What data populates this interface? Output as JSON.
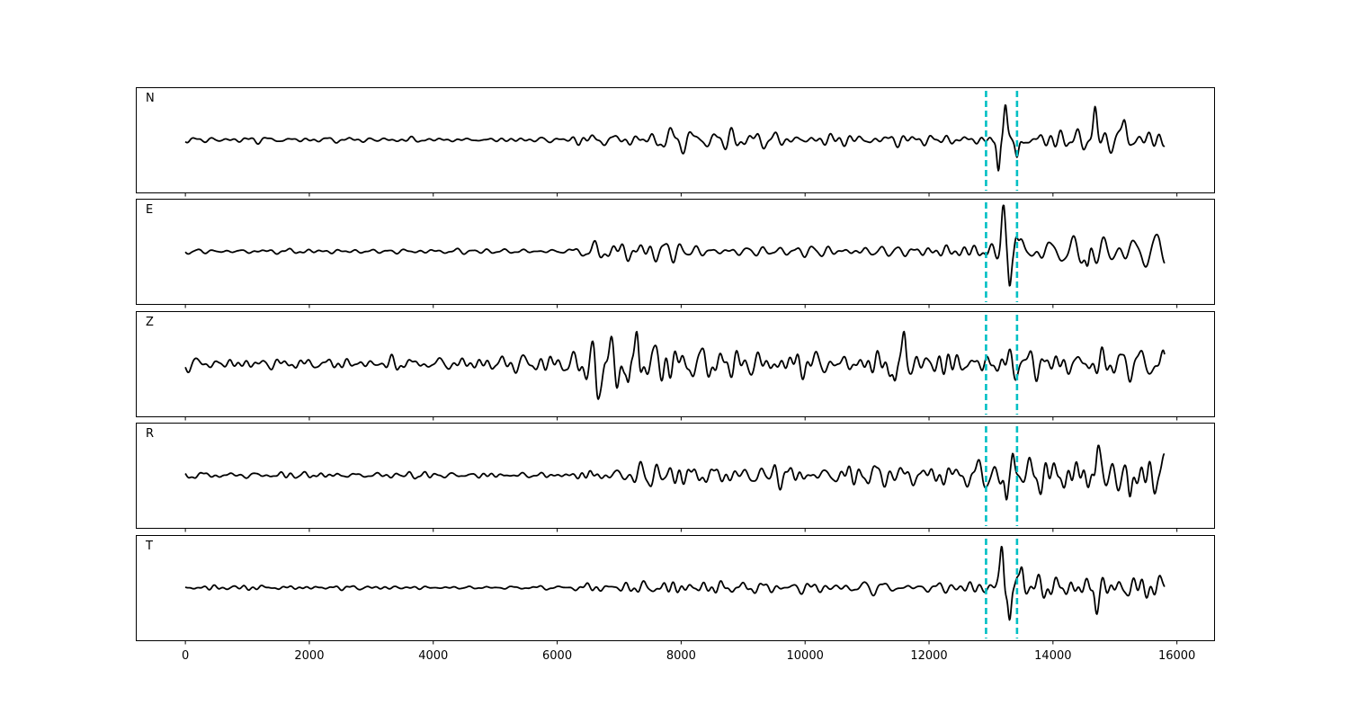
{
  "chart_data": {
    "type": "line",
    "title": "",
    "xlabel": "",
    "ylabel": "",
    "xlim": [
      -800,
      16600
    ],
    "ylim": [
      -1,
      1
    ],
    "x_ticks": [
      0,
      2000,
      4000,
      6000,
      8000,
      10000,
      12000,
      14000,
      16000
    ],
    "x_tick_labels": [
      "0",
      "2000",
      "4000",
      "6000",
      "8000",
      "10000",
      "12000",
      "14000",
      "16000"
    ],
    "x_range": [
      0,
      15800
    ],
    "grid": false,
    "legend": "none",
    "trace_color": "#000000",
    "marker_color": "#00bfc4",
    "markers": [
      12920,
      13420
    ],
    "series": [
      {
        "name": "N",
        "noise_level": 0.06,
        "segments": [
          {
            "start": 6300,
            "level": 0.16
          },
          {
            "start": 7500,
            "level": 0.22
          },
          {
            "start": 9500,
            "level": 0.17
          },
          {
            "start": 12800,
            "level": 0.18
          },
          {
            "start": 13400,
            "level": 0.27
          }
        ],
        "spikes": [
          {
            "x": 13230,
            "amp": 0.85,
            "sigma": 40
          },
          {
            "x": 13120,
            "amp": -0.75,
            "sigma": 35
          },
          {
            "x": 13420,
            "amp": -0.45,
            "sigma": 40
          },
          {
            "x": 14680,
            "amp": 0.55,
            "sigma": 40
          },
          {
            "x": 15160,
            "amp": 0.35,
            "sigma": 45
          }
        ]
      },
      {
        "name": "E",
        "noise_level": 0.06,
        "segments": [
          {
            "start": 6200,
            "level": 0.18
          },
          {
            "start": 6500,
            "level": 0.24
          },
          {
            "start": 8000,
            "level": 0.16
          },
          {
            "start": 11500,
            "level": 0.2
          },
          {
            "start": 12800,
            "level": 0.25
          },
          {
            "start": 13500,
            "level": 0.35
          }
        ],
        "spikes": [
          {
            "x": 13200,
            "amp": 0.85,
            "sigma": 40
          },
          {
            "x": 13300,
            "amp": -0.7,
            "sigma": 35
          },
          {
            "x": 13400,
            "amp": 0.45,
            "sigma": 40
          },
          {
            "x": 14560,
            "amp": -0.4,
            "sigma": 40
          }
        ]
      },
      {
        "name": "Z",
        "noise_level": 0.13,
        "segments": [
          {
            "start": 4800,
            "level": 0.2
          },
          {
            "start": 6400,
            "level": 0.52
          },
          {
            "start": 7600,
            "level": 0.42
          },
          {
            "start": 8600,
            "level": 0.28
          },
          {
            "start": 11300,
            "level": 0.32
          },
          {
            "start": 12600,
            "level": 0.28
          },
          {
            "start": 13500,
            "level": 0.3
          }
        ],
        "spikes": [
          {
            "x": 6640,
            "amp": -0.6,
            "sigma": 40
          },
          {
            "x": 7150,
            "amp": -0.65,
            "sigma": 40
          },
          {
            "x": 7290,
            "amp": 0.65,
            "sigma": 40
          },
          {
            "x": 11600,
            "amp": 0.55,
            "sigma": 40
          },
          {
            "x": 11450,
            "amp": -0.45,
            "sigma": 40
          }
        ]
      },
      {
        "name": "R",
        "noise_level": 0.07,
        "segments": [
          {
            "start": 6400,
            "level": 0.24
          },
          {
            "start": 8200,
            "level": 0.22
          },
          {
            "start": 10200,
            "level": 0.24
          },
          {
            "start": 12600,
            "level": 0.3
          },
          {
            "start": 13500,
            "level": 0.42
          }
        ],
        "spikes": [
          {
            "x": 13250,
            "amp": -0.75,
            "sigma": 40
          },
          {
            "x": 13350,
            "amp": 0.6,
            "sigma": 40
          },
          {
            "x": 14720,
            "amp": 0.5,
            "sigma": 40
          },
          {
            "x": 15240,
            "amp": -0.45,
            "sigma": 40
          }
        ]
      },
      {
        "name": "T",
        "noise_level": 0.05,
        "segments": [
          {
            "start": 4700,
            "level": 0.05
          },
          {
            "start": 6300,
            "level": 0.11
          },
          {
            "start": 7500,
            "level": 0.16
          },
          {
            "start": 9500,
            "level": 0.12
          },
          {
            "start": 11800,
            "level": 0.12
          },
          {
            "start": 13000,
            "level": 0.2
          },
          {
            "start": 13500,
            "level": 0.3
          }
        ],
        "spikes": [
          {
            "x": 13180,
            "amp": 0.9,
            "sigma": 40
          },
          {
            "x": 13300,
            "amp": -0.72,
            "sigma": 35
          },
          {
            "x": 13500,
            "amp": 0.5,
            "sigma": 40
          },
          {
            "x": 14700,
            "amp": -0.4,
            "sigma": 40
          }
        ]
      }
    ]
  }
}
